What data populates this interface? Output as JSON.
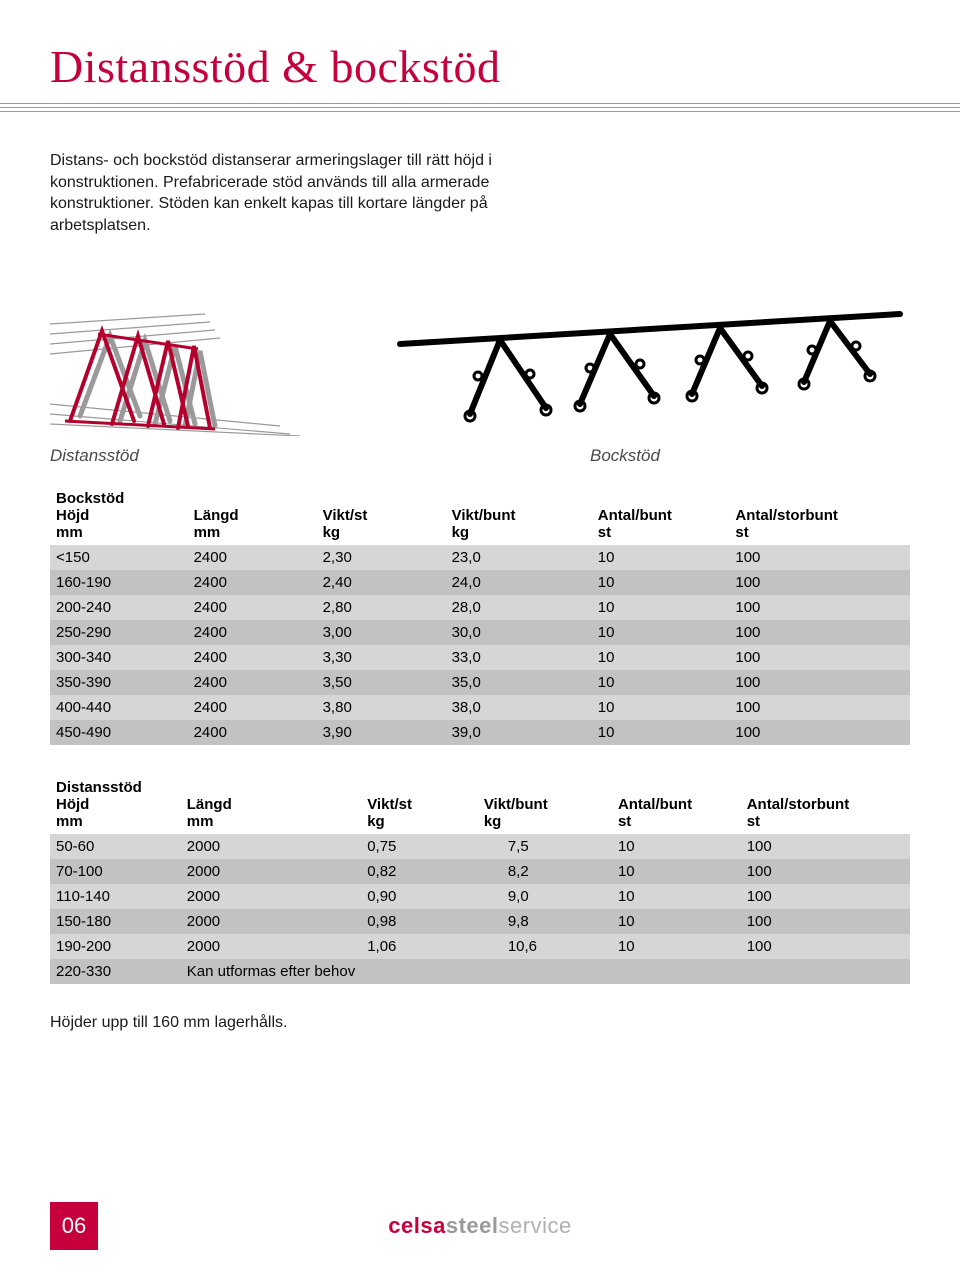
{
  "title": "Distansstöd & bockstöd",
  "intro": "Distans- och bockstöd distanserar armeringslager till rätt höjd i konstruktionen. Prefabricerade stöd används till alla armerade konstruktioner. Stöden kan enkelt kapas till kortare längder på arbetsplatsen.",
  "illus": {
    "label1": "Distansstöd",
    "label2": "Bockstöd"
  },
  "colors": {
    "accent": "#c6003d",
    "row_odd": "#d6d6d6",
    "row_even": "#c2c2c2",
    "text": "#1a1a1a",
    "rule": "#9a9a9a",
    "ill_red": "#b3002d",
    "ill_grey": "#8d8d8d"
  },
  "table1": {
    "columns": [
      {
        "l1": "Bockstöd",
        "l2": "Höjd",
        "l3": "mm"
      },
      {
        "l1": "",
        "l2": "Längd",
        "l3": "mm"
      },
      {
        "l1": "",
        "l2": "Vikt/st",
        "l3": "kg"
      },
      {
        "l1": "",
        "l2": "Vikt/bunt",
        "l3": "kg"
      },
      {
        "l1": "",
        "l2": "Antal/bunt",
        "l3": "st"
      },
      {
        "l1": "",
        "l2": "Antal/storbunt",
        "l3": "st"
      }
    ],
    "rows": [
      [
        "<150",
        "2400",
        "2,30",
        "23,0",
        "10",
        "100"
      ],
      [
        "160-190",
        "2400",
        "2,40",
        "24,0",
        "10",
        "100"
      ],
      [
        "200-240",
        "2400",
        "2,80",
        "28,0",
        "10",
        "100"
      ],
      [
        "250-290",
        "2400",
        "3,00",
        "30,0",
        "10",
        "100"
      ],
      [
        "300-340",
        "2400",
        "3,30",
        "33,0",
        "10",
        "100"
      ],
      [
        "350-390",
        "2400",
        "3,50",
        "35,0",
        "10",
        "100"
      ],
      [
        "400-440",
        "2400",
        "3,80",
        "38,0",
        "10",
        "100"
      ],
      [
        "450-490",
        "2400",
        "3,90",
        "39,0",
        "10",
        "100"
      ]
    ]
  },
  "table2": {
    "columns": [
      {
        "l1": "Distansstöd",
        "l2": "Höjd",
        "l3": "mm"
      },
      {
        "l1": "",
        "l2": "Längd",
        "l3": "mm"
      },
      {
        "l1": "",
        "l2": "Vikt/st",
        "l3": "kg"
      },
      {
        "l1": "",
        "l2": "Vikt/bunt",
        "l3": "kg"
      },
      {
        "l1": "",
        "l2": "Antal/bunt",
        "l3": "st"
      },
      {
        "l1": "",
        "l2": "Antal/storbunt",
        "l3": "st"
      }
    ],
    "rows": [
      [
        "50-60",
        "2000",
        "0,75",
        "7,5",
        "10",
        "100"
      ],
      [
        "70-100",
        "2000",
        "0,82",
        "8,2",
        "10",
        "100"
      ],
      [
        "110-140",
        "2000",
        "0,90",
        "9,0",
        "10",
        "100"
      ],
      [
        "150-180",
        "2000",
        "0,98",
        "9,8",
        "10",
        "100"
      ],
      [
        "190-200",
        "2000",
        "1,06",
        "10,6",
        "10",
        "100"
      ],
      [
        "220-330",
        "Kan utformas efter behov",
        "",
        "",
        "",
        ""
      ]
    ],
    "col3_pad": true
  },
  "footer_line": "Höjder upp till 160 mm lagerhålls.",
  "page_number": "06",
  "brand": {
    "p1": "celsa",
    "p2": "steel",
    "p3": "service"
  }
}
